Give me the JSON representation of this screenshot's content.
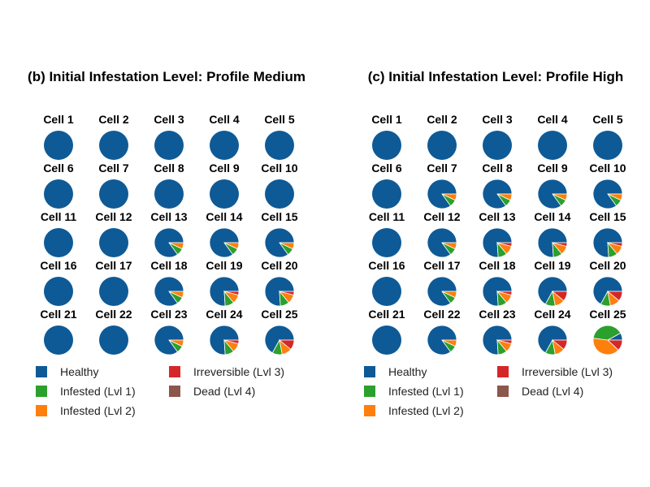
{
  "colors": {
    "Healthy": "#0e5a96",
    "Infested (Lvl 1)": "#2ca02c",
    "Infested (Lvl 2)": "#ff7f0e",
    "Irreversible (Lvl 3)": "#d62728",
    "Dead (Lvl 4)": "#8c564b"
  },
  "chart_data": [
    {
      "type": "pie",
      "title": "(b) Initial Infestation Level: Profile Medium",
      "legend": [
        "Healthy",
        "Infested (Lvl 1)",
        "Infested (Lvl 2)",
        "Irreversible (Lvl 3)",
        "Dead (Lvl 4)"
      ],
      "legend_placement": "bottom",
      "cells": [
        {
          "label": "Cell 1",
          "values": [
            100,
            0,
            0,
            0,
            0
          ]
        },
        {
          "label": "Cell 2",
          "values": [
            100,
            0,
            0,
            0,
            0
          ]
        },
        {
          "label": "Cell 3",
          "values": [
            100,
            0,
            0,
            0,
            0
          ]
        },
        {
          "label": "Cell 4",
          "values": [
            100,
            0,
            0,
            0,
            0
          ]
        },
        {
          "label": "Cell 5",
          "values": [
            100,
            0,
            0,
            0,
            0
          ]
        },
        {
          "label": "Cell 6",
          "values": [
            100,
            0,
            0,
            0,
            0
          ]
        },
        {
          "label": "Cell 7",
          "values": [
            100,
            0,
            0,
            0,
            0
          ]
        },
        {
          "label": "Cell 8",
          "values": [
            100,
            0,
            0,
            0,
            0
          ]
        },
        {
          "label": "Cell 9",
          "values": [
            100,
            0,
            0,
            0,
            0
          ]
        },
        {
          "label": "Cell 10",
          "values": [
            100,
            0,
            0,
            0,
            0
          ]
        },
        {
          "label": "Cell 11",
          "values": [
            100,
            0,
            0,
            0,
            0
          ]
        },
        {
          "label": "Cell 12",
          "values": [
            100,
            0,
            0,
            0,
            0
          ]
        },
        {
          "label": "Cell 13",
          "values": [
            85,
            8,
            7,
            0,
            0
          ]
        },
        {
          "label": "Cell 14",
          "values": [
            85,
            8,
            7,
            0,
            0
          ]
        },
        {
          "label": "Cell 15",
          "values": [
            85,
            8,
            7,
            0,
            0
          ]
        },
        {
          "label": "Cell 16",
          "values": [
            100,
            0,
            0,
            0,
            0
          ]
        },
        {
          "label": "Cell 17",
          "values": [
            100,
            0,
            0,
            0,
            0
          ]
        },
        {
          "label": "Cell 18",
          "values": [
            85,
            8,
            7,
            0,
            0
          ]
        },
        {
          "label": "Cell 19",
          "values": [
            76,
            10,
            10,
            4,
            0
          ]
        },
        {
          "label": "Cell 20",
          "values": [
            76,
            10,
            10,
            4,
            0
          ]
        },
        {
          "label": "Cell 21",
          "values": [
            100,
            0,
            0,
            0,
            0
          ]
        },
        {
          "label": "Cell 22",
          "values": [
            100,
            0,
            0,
            0,
            0
          ]
        },
        {
          "label": "Cell 23",
          "values": [
            85,
            8,
            7,
            0,
            0
          ]
        },
        {
          "label": "Cell 24",
          "values": [
            76,
            10,
            10,
            4,
            0
          ]
        },
        {
          "label": "Cell 25",
          "values": [
            67,
            11,
            11,
            11,
            0
          ]
        }
      ]
    },
    {
      "type": "pie",
      "title": "(c) Initial Infestation Level: Profile High",
      "legend": [
        "Healthy",
        "Infested (Lvl 1)",
        "Infested (Lvl 2)",
        "Irreversible (Lvl 3)",
        "Dead (Lvl 4)"
      ],
      "legend_placement": "bottom",
      "cells": [
        {
          "label": "Cell 1",
          "values": [
            100,
            0,
            0,
            0,
            0
          ]
        },
        {
          "label": "Cell 2",
          "values": [
            100,
            0,
            0,
            0,
            0
          ]
        },
        {
          "label": "Cell 3",
          "values": [
            100,
            0,
            0,
            0,
            0
          ]
        },
        {
          "label": "Cell 4",
          "values": [
            100,
            0,
            0,
            0,
            0
          ]
        },
        {
          "label": "Cell 5",
          "values": [
            100,
            0,
            0,
            0,
            0
          ]
        },
        {
          "label": "Cell 6",
          "values": [
            100,
            0,
            0,
            0,
            0
          ]
        },
        {
          "label": "Cell 7",
          "values": [
            85,
            8,
            7,
            0,
            0
          ]
        },
        {
          "label": "Cell 8",
          "values": [
            85,
            8,
            7,
            0,
            0
          ]
        },
        {
          "label": "Cell 9",
          "values": [
            85,
            8,
            7,
            0,
            0
          ]
        },
        {
          "label": "Cell 10",
          "values": [
            85,
            8,
            7,
            0,
            0
          ]
        },
        {
          "label": "Cell 11",
          "values": [
            100,
            0,
            0,
            0,
            0
          ]
        },
        {
          "label": "Cell 12",
          "values": [
            85,
            8,
            7,
            0,
            0
          ]
        },
        {
          "label": "Cell 13",
          "values": [
            76,
            10,
            10,
            4,
            0
          ]
        },
        {
          "label": "Cell 14",
          "values": [
            76,
            10,
            10,
            4,
            0
          ]
        },
        {
          "label": "Cell 15",
          "values": [
            76,
            10,
            10,
            4,
            0
          ]
        },
        {
          "label": "Cell 16",
          "values": [
            100,
            0,
            0,
            0,
            0
          ]
        },
        {
          "label": "Cell 17",
          "values": [
            85,
            8,
            7,
            0,
            0
          ]
        },
        {
          "label": "Cell 18",
          "values": [
            76,
            10,
            10,
            4,
            0
          ]
        },
        {
          "label": "Cell 19",
          "values": [
            67,
            11,
            11,
            11,
            0
          ]
        },
        {
          "label": "Cell 20",
          "values": [
            67,
            11,
            11,
            11,
            0
          ]
        },
        {
          "label": "Cell 21",
          "values": [
            100,
            0,
            0,
            0,
            0
          ]
        },
        {
          "label": "Cell 22",
          "values": [
            85,
            8,
            7,
            0,
            0
          ]
        },
        {
          "label": "Cell 23",
          "values": [
            76,
            10,
            10,
            4,
            0
          ]
        },
        {
          "label": "Cell 24",
          "values": [
            67,
            11,
            11,
            11,
            0
          ]
        },
        {
          "label": "Cell 25",
          "values": [
            8,
            40,
            40,
            12,
            0
          ]
        }
      ]
    }
  ]
}
